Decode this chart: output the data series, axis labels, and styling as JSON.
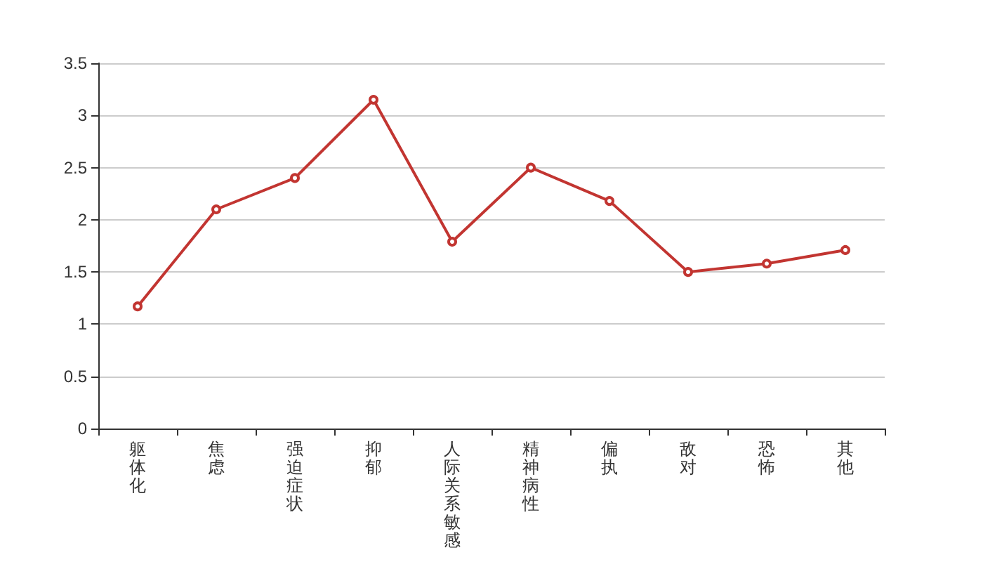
{
  "chart_data": {
    "type": "line",
    "categories": [
      "躯体化",
      "焦虑",
      "强迫症状",
      "抑郁",
      "人际关系敏感",
      "精神病性",
      "偏执",
      "敌对",
      "恐怖",
      "其他"
    ],
    "series": [
      {
        "color": "#c23531",
        "values": [
          1.17,
          2.1,
          2.4,
          3.15,
          1.79,
          2.5,
          2.18,
          1.5,
          1.58,
          1.71
        ]
      }
    ],
    "ylim": [
      0,
      3.5
    ],
    "yticks": [
      0,
      0.5,
      1,
      1.5,
      2,
      2.5,
      3,
      3.5
    ],
    "grid": "y",
    "marker": "circle",
    "line_style": "solid"
  }
}
